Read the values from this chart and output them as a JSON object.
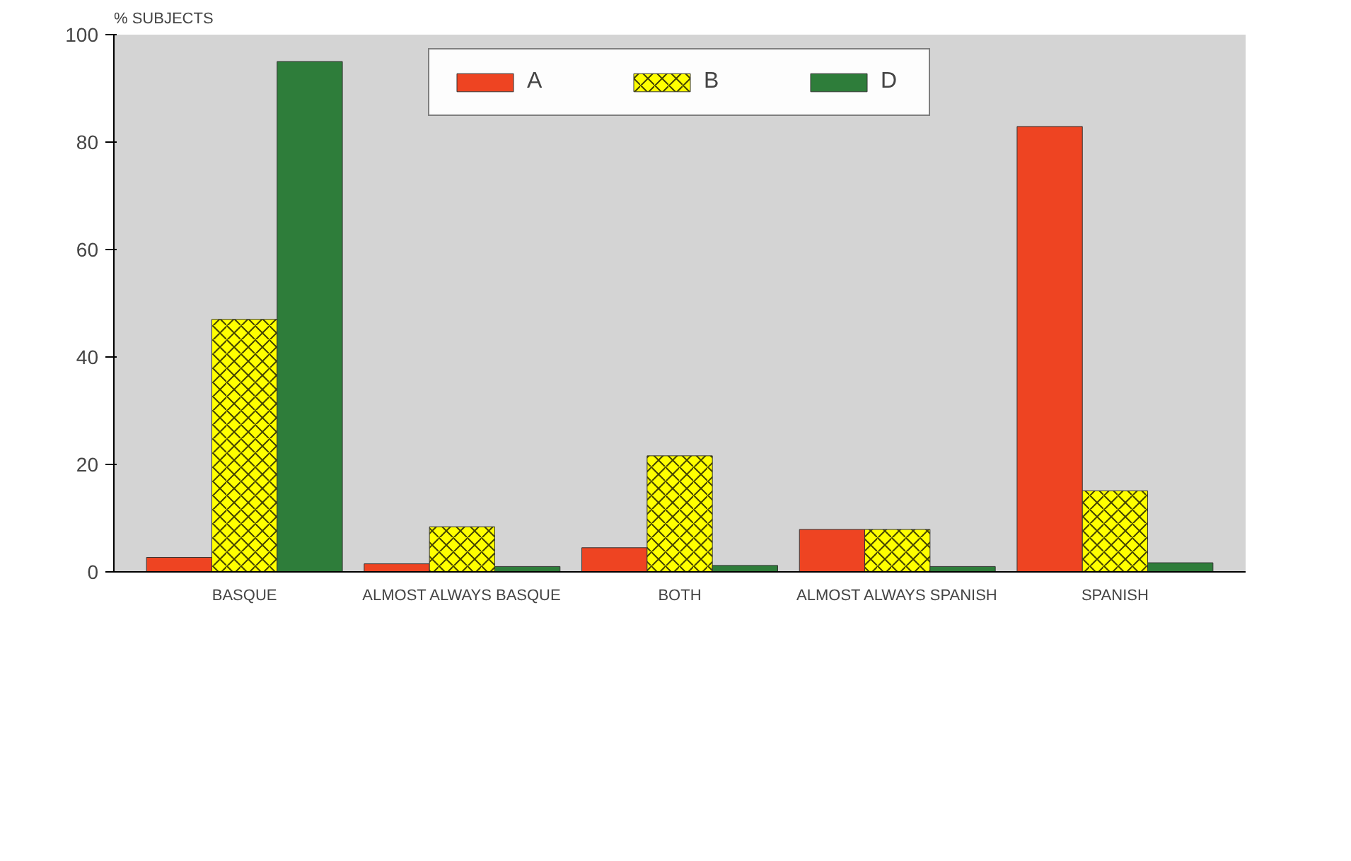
{
  "chart_data": {
    "type": "bar",
    "ylabel": "% SUBJECTS",
    "categories": [
      "BASQUE",
      "ALMOST ALWAYS BASQUE",
      "BOTH",
      "ALMOST ALWAYS SPANISH",
      "SPANISH"
    ],
    "series": [
      {
        "name": "A",
        "color": "#ee4422",
        "values": [
          2.7,
          1.5,
          4.5,
          7.9,
          82.9
        ]
      },
      {
        "name": "B",
        "color": "#ffff00",
        "values": [
          47,
          8.4,
          21.6,
          7.9,
          15.1
        ]
      },
      {
        "name": "D",
        "color": "#2e7d3a",
        "values": [
          95,
          1,
          1.2,
          1,
          1.7
        ]
      }
    ],
    "ylim": [
      0,
      100
    ],
    "yticks": [
      0,
      20,
      40,
      60,
      80,
      100
    ],
    "grid": false,
    "legend": "top"
  }
}
